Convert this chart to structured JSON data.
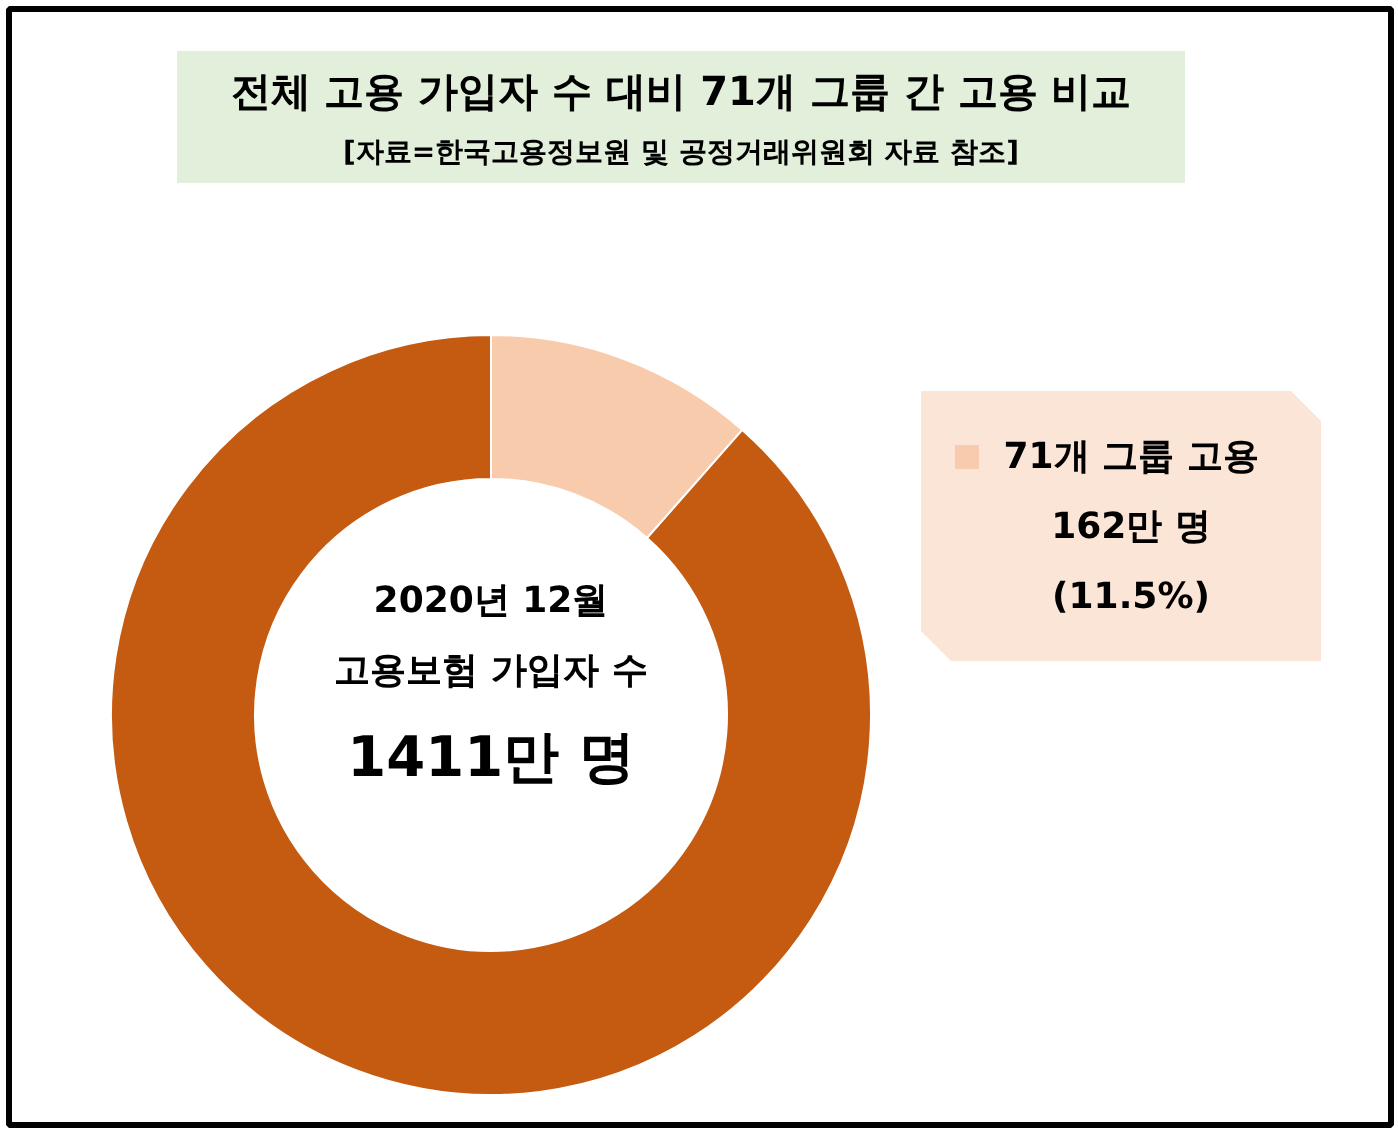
{
  "chart_data": {
    "type": "donut",
    "title": "전체 고용 가입자 수 대비 71개 그룹 간 고용 비교",
    "subtitle": "[자료=한국고용정보원 및 공정거래위원회 자료 참조]",
    "categories": [
      "71개 그룹 고용",
      null
    ],
    "values": [
      11.5,
      88.5
    ],
    "colors": [
      "#f8cbad",
      "#c55a11"
    ],
    "value_labels": [
      "162만 명\n(11.5%)",
      null
    ],
    "annotations": [
      "2020년 12월",
      "고용보험 가입자 수",
      "1411만 명"
    ],
    "legend": "right"
  }
}
